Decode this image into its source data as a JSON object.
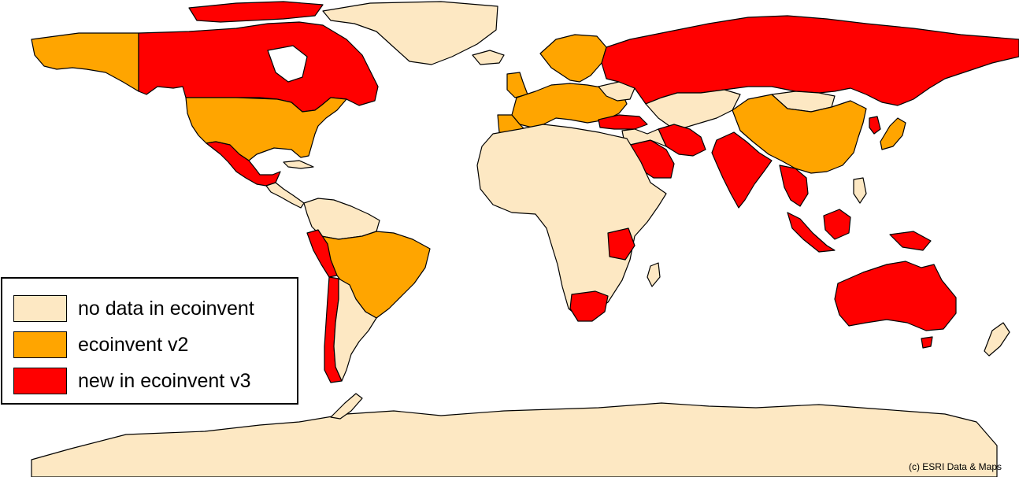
{
  "colors": {
    "no_data": "#fde8c3",
    "v2": "#ffa500",
    "v3": "#ff0000",
    "ocean": "#ffffff",
    "border": "#000000"
  },
  "legend": {
    "items": [
      {
        "label": "no data in ecoinvent",
        "color": "#fde8c3"
      },
      {
        "label": "ecoinvent v2",
        "color": "#ffa500"
      },
      {
        "label": "new in ecoinvent v3",
        "color": "#ff0000"
      }
    ]
  },
  "credit": "(c) ESRI Data & Maps"
}
